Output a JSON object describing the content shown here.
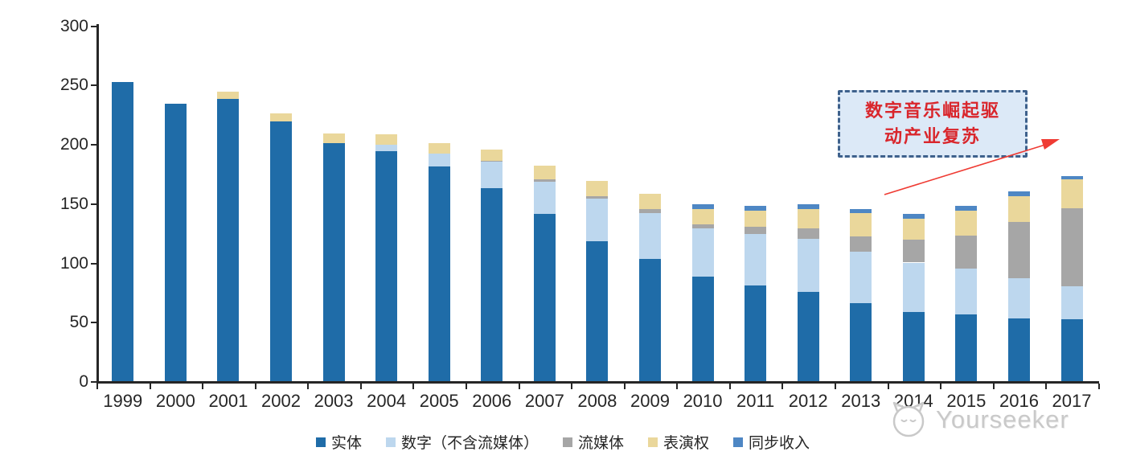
{
  "chart_data": {
    "type": "bar",
    "stacked": true,
    "title": "",
    "xlabel": "",
    "ylabel": "",
    "categories": [
      "1999",
      "2000",
      "2001",
      "2002",
      "2003",
      "2004",
      "2005",
      "2006",
      "2007",
      "2008",
      "2009",
      "2010",
      "2011",
      "2012",
      "2013",
      "2014",
      "2015",
      "2016",
      "2017"
    ],
    "series": [
      {
        "name": "实体",
        "color": "#1F6CA8",
        "values": [
          252,
          234,
          238,
          219,
          201,
          194,
          181,
          163,
          141,
          118,
          103,
          88,
          81,
          75,
          66,
          58,
          56,
          53,
          52
        ]
      },
      {
        "name": "数字（不含流媒体）",
        "color": "#BDD7EE",
        "values": [
          0,
          0,
          0,
          0,
          0,
          5,
          11,
          22,
          27,
          36,
          39,
          41,
          43,
          45,
          43,
          42,
          39,
          34,
          28
        ]
      },
      {
        "name": "流媒体",
        "color": "#A6A6A6",
        "values": [
          0,
          0,
          0,
          0,
          0,
          0,
          0,
          1,
          2,
          2,
          3,
          3,
          6,
          9,
          13,
          19,
          28,
          47,
          66
        ]
      },
      {
        "name": "表演权",
        "color": "#EAD79B",
        "values": [
          0,
          0,
          6,
          7,
          8,
          9,
          9,
          9,
          12,
          13,
          13,
          13,
          14,
          16,
          20,
          18,
          21,
          22,
          24
        ]
      },
      {
        "name": "同步收入",
        "color": "#4E87C4",
        "values": [
          0,
          0,
          0,
          0,
          0,
          0,
          0,
          0,
          0,
          0,
          0,
          4,
          4,
          4,
          3,
          4,
          4,
          4,
          3
        ]
      }
    ],
    "ylim": [
      0,
      300
    ],
    "yticks": [
      0,
      50,
      100,
      150,
      200,
      250,
      300
    ],
    "grid": false,
    "legend_position": "bottom"
  },
  "annotation": {
    "lines": [
      "数字音乐崛起驱",
      "动产业复苏"
    ],
    "text_color": "#D9262C",
    "box_fill": "#DCE9F7",
    "border_color": "#3E618C",
    "arrow_color": "#EF3B33"
  },
  "watermark": {
    "text": "Yourseeker",
    "logo": "cat-face-icon",
    "color": "#C9C9C9"
  }
}
